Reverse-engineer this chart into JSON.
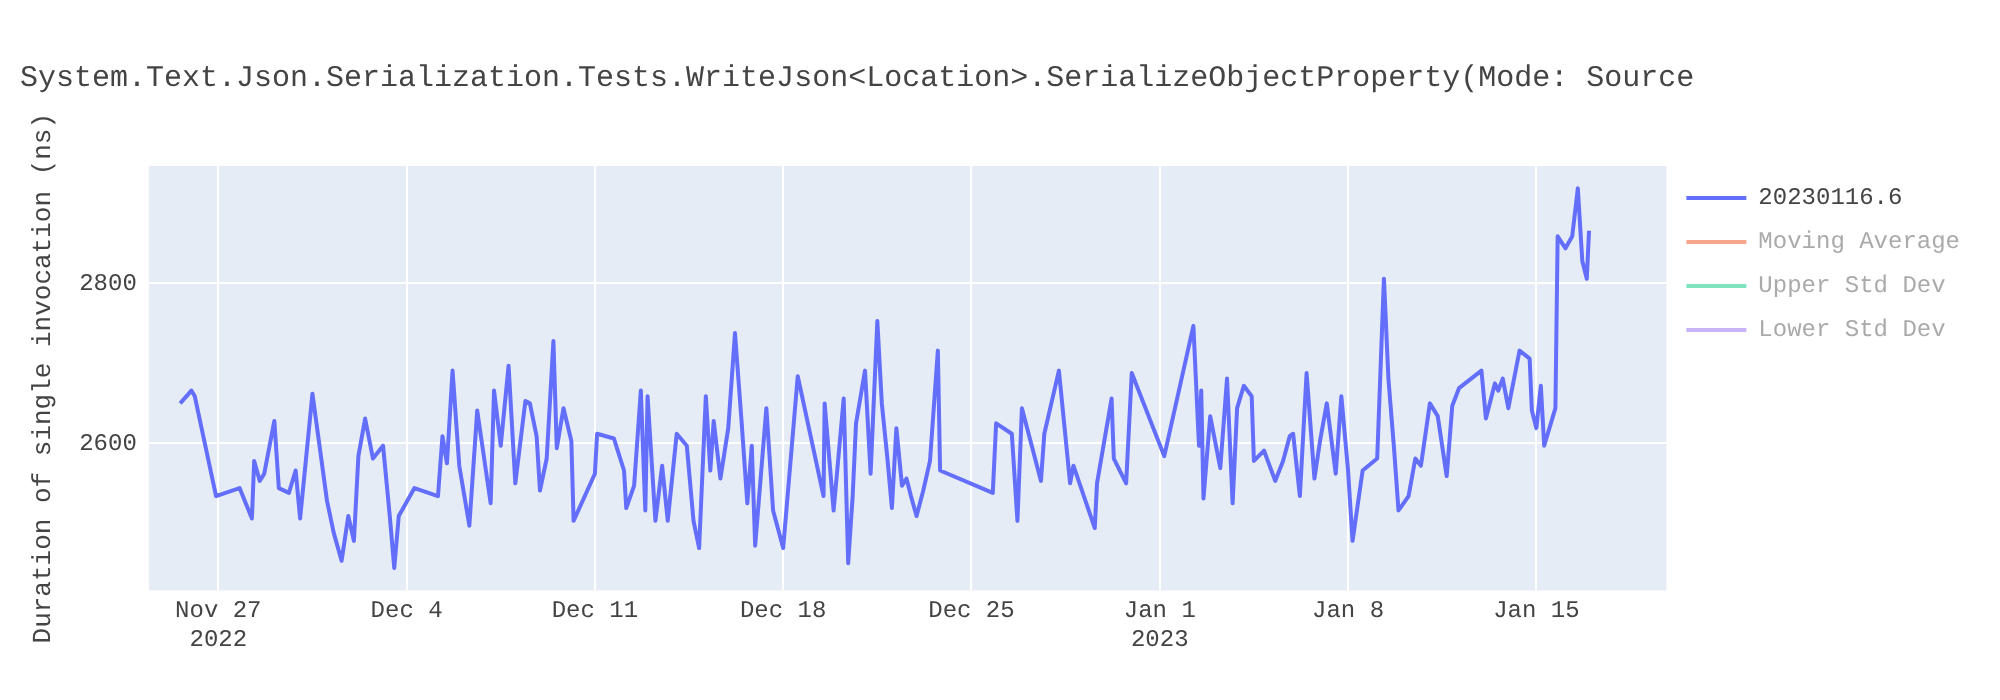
{
  "chart_data": {
    "type": "line",
    "title": "System.Text.Json.Serialization.Tests.WriteJson<Location>.SerializeObjectProperty(Mode: Source",
    "ylabel": "Duration of single invocation (ns)",
    "xlim": [
      "2022-11-24T10:00",
      "2023-01-19T20:00"
    ],
    "xticks": [
      {
        "value": "2022-11-27",
        "label": "Nov 27\n2022"
      },
      {
        "value": "2022-12-04",
        "label": "Dec 4"
      },
      {
        "value": "2022-12-11",
        "label": "Dec 11"
      },
      {
        "value": "2022-12-18",
        "label": "Dec 18"
      },
      {
        "value": "2022-12-25",
        "label": "Dec 25"
      },
      {
        "value": "2023-01-01",
        "label": "Jan 1\n2023"
      },
      {
        "value": "2023-01-08",
        "label": "Jan 8"
      },
      {
        "value": "2023-01-15",
        "label": "Jan 15"
      }
    ],
    "ylim": [
      2416,
      2947
    ],
    "yticks": [
      2600,
      2800
    ],
    "grid": true,
    "legend": "top right",
    "line_style": "solid",
    "x": [
      "2022-11-25T14:00",
      "2022-11-26T00:00",
      "2022-11-26T03:00",
      "2022-11-26T22:00",
      "2022-11-27T19:00",
      "2022-11-28T06:00",
      "2022-11-28T08:00",
      "2022-11-28T13:00",
      "2022-11-28T17:00",
      "2022-11-29T02:00",
      "2022-11-29T06:00",
      "2022-11-29T15:00",
      "2022-11-29T21:00",
      "2022-11-30T01:00",
      "2022-11-30T12:00",
      "2022-12-01T01:00",
      "2022-12-01T07:00",
      "2022-12-01T14:00",
      "2022-12-01T20:00",
      "2022-12-02T01:00",
      "2022-12-02T05:00",
      "2022-12-02T11:00",
      "2022-12-02T18:00",
      "2022-12-03T03:00",
      "2022-12-03T09:00",
      "2022-12-03T13:00",
      "2022-12-03T17:00",
      "2022-12-04T07:00",
      "2022-12-05T04:00",
      "2022-12-05T08:00",
      "2022-12-05T12:00",
      "2022-12-05T17:00",
      "2022-12-05T23:00",
      "2022-12-06T08:00",
      "2022-12-06T15:00",
      "2022-12-07T03:00",
      "2022-12-07T06:00",
      "2022-12-07T12:00",
      "2022-12-07T19:00",
      "2022-12-08T01:00",
      "2022-12-08T10:00",
      "2022-12-08T14:00",
      "2022-12-08T20:00",
      "2022-12-08T23:00",
      "2022-12-09T05:00",
      "2022-12-09T11:00",
      "2022-12-09T14:00",
      "2022-12-09T20:00",
      "2022-12-10T03:00",
      "2022-12-10T05:00",
      "2022-12-11T00:00",
      "2022-12-11T02:00",
      "2022-12-11T17:00",
      "2022-12-12T02:00",
      "2022-12-12T04:00",
      "2022-12-12T11:00",
      "2022-12-12T17:00",
      "2022-12-12T21:00",
      "2022-12-12T23:00",
      "2022-12-13T06:00",
      "2022-12-13T12:00",
      "2022-12-13T17:00",
      "2022-12-14T01:00",
      "2022-12-14T10:00",
      "2022-12-14T16:00",
      "2022-12-14T21:00",
      "2022-12-15T03:00",
      "2022-12-15T07:00",
      "2022-12-15T10:00",
      "2022-12-15T16:00",
      "2022-12-15T23:00",
      "2022-12-16T05:00",
      "2022-12-16T11:00",
      "2022-12-16T16:00",
      "2022-12-16T20:00",
      "2022-12-16T23:00",
      "2022-12-17T09:00",
      "2022-12-17T15:00",
      "2022-12-18T00:00",
      "2022-12-18T13:00",
      "2022-12-19T12:00",
      "2022-12-19T13:00",
      "2022-12-19T21:00",
      "2022-12-20T06:00",
      "2022-12-20T10:00",
      "2022-12-20T14:00",
      "2022-12-20T17:00",
      "2022-12-21T01:00",
      "2022-12-21T06:00",
      "2022-12-21T12:00",
      "2022-12-21T16:00",
      "2022-12-21T21:00",
      "2022-12-22T01:00",
      "2022-12-22T05:00",
      "2022-12-22T10:00",
      "2022-12-22T14:00",
      "2022-12-22T18:00",
      "2022-12-22T23:00",
      "2022-12-23T05:00",
      "2022-12-23T11:00",
      "2022-12-23T18:00",
      "2022-12-23T20:00",
      "2022-12-25T19:00",
      "2022-12-25T22:00",
      "2022-12-26T12:00",
      "2022-12-26T17:00",
      "2022-12-26T21:00",
      "2022-12-27T14:00",
      "2022-12-27T17:00",
      "2022-12-28T06:00",
      "2022-12-28T16:00",
      "2022-12-28T19:00",
      "2022-12-29T14:00",
      "2022-12-29T16:00",
      "2022-12-30T05:00",
      "2022-12-30T07:00",
      "2022-12-30T18:00",
      "2022-12-30T23:00",
      "2023-01-01T04:00",
      "2023-01-02T06:00",
      "2023-01-02T11:00",
      "2023-01-02T13:00",
      "2023-01-02T15:00",
      "2023-01-02T21:00",
      "2023-01-03T06:00",
      "2023-01-03T12:00",
      "2023-01-03T17:00",
      "2023-01-03T21:00",
      "2023-01-04T03:00",
      "2023-01-04T10:00",
      "2023-01-04T12:00",
      "2023-01-04T21:00",
      "2023-01-05T07:00",
      "2023-01-05T14:00",
      "2023-01-05T20:00",
      "2023-01-05T23:00",
      "2023-01-06T05:00",
      "2023-01-06T11:00",
      "2023-01-06T18:00",
      "2023-01-06T23:00",
      "2023-01-07T05:00",
      "2023-01-07T13:00",
      "2023-01-07T18:00",
      "2023-01-08T00:00",
      "2023-01-08T04:00",
      "2023-01-08T13:00",
      "2023-01-09T02:00",
      "2023-01-09T08:00",
      "2023-01-09T12:00",
      "2023-01-09T17:00",
      "2023-01-09T21:00",
      "2023-01-10T06:00",
      "2023-01-10T12:00",
      "2023-01-10T17:00",
      "2023-01-11T01:00",
      "2023-01-11T08:00",
      "2023-01-11T16:00",
      "2023-01-11T21:00",
      "2023-01-12T03:00",
      "2023-01-12T23:00",
      "2023-01-13T03:00",
      "2023-01-13T11:00",
      "2023-01-13T14:00",
      "2023-01-13T18:00",
      "2023-01-13T23:00",
      "2023-01-14T09:00",
      "2023-01-14T18:00",
      "2023-01-14T20:00",
      "2023-01-15T00:00",
      "2023-01-15T04:00",
      "2023-01-15T07:00",
      "2023-01-15T17:00",
      "2023-01-15T19:00",
      "2023-01-16T02:00",
      "2023-01-16T08:00",
      "2023-01-16T13:00",
      "2023-01-16T17:00",
      "2023-01-16T21:00",
      "2023-01-16T23:00"
    ],
    "series": [
      {
        "name": "20230116.6",
        "color": "#636efa",
        "values": [
          2650,
          2666,
          2659,
          2534,
          2544,
          2506,
          2578,
          2553,
          2562,
          2628,
          2544,
          2538,
          2566,
          2506,
          2662,
          2528,
          2488,
          2453,
          2509,
          2478,
          2584,
          2631,
          2581,
          2597,
          2509,
          2444,
          2509,
          2544,
          2534,
          2609,
          2575,
          2691,
          2572,
          2497,
          2641,
          2525,
          2666,
          2597,
          2697,
          2550,
          2653,
          2650,
          2609,
          2541,
          2581,
          2728,
          2594,
          2644,
          2603,
          2503,
          2562,
          2612,
          2606,
          2566,
          2519,
          2547,
          2666,
          2516,
          2659,
          2503,
          2572,
          2503,
          2612,
          2597,
          2503,
          2469,
          2659,
          2566,
          2628,
          2556,
          2619,
          2738,
          2625,
          2525,
          2597,
          2472,
          2644,
          2516,
          2469,
          2684,
          2534,
          2650,
          2516,
          2656,
          2450,
          2534,
          2625,
          2691,
          2562,
          2753,
          2650,
          2581,
          2519,
          2619,
          2547,
          2556,
          2534,
          2509,
          2541,
          2578,
          2716,
          2566,
          2538,
          2625,
          2612,
          2503,
          2644,
          2553,
          2612,
          2691,
          2550,
          2572,
          2494,
          2550,
          2656,
          2581,
          2550,
          2688,
          2584,
          2747,
          2597,
          2666,
          2531,
          2634,
          2569,
          2681,
          2525,
          2644,
          2672,
          2659,
          2578,
          2591,
          2553,
          2578,
          2609,
          2612,
          2534,
          2688,
          2556,
          2603,
          2650,
          2562,
          2659,
          2566,
          2478,
          2566,
          2581,
          2806,
          2681,
          2594,
          2516,
          2534,
          2581,
          2572,
          2650,
          2634,
          2559,
          2647,
          2669,
          2691,
          2631,
          2675,
          2666,
          2681,
          2644,
          2716,
          2706,
          2641,
          2619,
          2672,
          2597,
          2644,
          2859,
          2844,
          2859,
          2919,
          2828,
          2806,
          2866
        ]
      },
      {
        "name": "Moving Average",
        "color": "#f4a58a",
        "values": [
          null,
          null,
          null,
          null,
          null,
          null,
          null,
          null,
          null,
          null,
          null,
          null,
          null,
          null,
          null,
          null,
          null,
          null,
          null,
          null,
          null,
          null,
          null,
          null,
          null,
          null,
          null,
          null,
          null,
          null,
          null,
          null,
          null,
          null,
          null,
          null,
          null,
          null,
          null,
          null,
          null,
          null,
          null,
          null,
          null,
          null,
          null,
          null,
          null,
          null,
          null,
          null,
          null,
          null,
          null,
          null,
          null,
          null,
          null,
          null,
          null,
          null,
          null,
          null,
          null,
          null,
          null,
          null,
          null,
          null,
          null,
          null,
          null,
          null,
          null,
          null,
          null,
          null,
          null,
          null,
          null,
          null,
          null,
          null,
          null,
          null,
          null,
          null,
          null,
          null,
          null,
          null,
          null,
          null,
          null,
          null,
          null,
          null,
          null,
          null,
          null,
          null,
          null,
          null,
          null,
          null,
          null,
          null,
          null,
          null,
          null,
          null,
          null,
          null,
          null,
          null,
          null,
          null,
          null,
          null,
          null,
          null,
          null,
          null,
          null,
          null,
          null,
          null,
          null,
          null,
          null,
          null,
          null,
          null,
          null,
          null,
          null,
          null,
          null,
          null,
          null,
          null,
          null,
          null,
          null,
          null,
          null,
          null,
          null,
          null,
          null,
          null,
          null,
          null,
          null,
          null,
          null,
          null,
          null,
          null,
          null,
          null,
          null,
          null,
          null,
          null,
          null,
          null,
          null,
          null,
          null,
          null,
          null,
          null,
          null,
          null,
          null,
          null,
          null
        ]
      },
      {
        "name": "Upper Std Dev",
        "color": "#7fe3bb",
        "values": [
          null,
          null,
          null,
          null,
          null,
          null,
          null,
          null,
          null,
          null,
          null,
          null,
          null,
          null,
          null,
          null,
          null,
          null,
          null,
          null,
          null,
          null,
          null,
          null,
          null,
          null,
          null,
          null,
          null,
          null,
          null,
          null,
          null,
          null,
          null,
          null,
          null,
          null,
          null,
          null,
          null,
          null,
          null,
          null,
          null,
          null,
          null,
          null,
          null,
          null,
          null,
          null,
          null,
          null,
          null,
          null,
          null,
          null,
          null,
          null,
          null,
          null,
          null,
          null,
          null,
          null,
          null,
          null,
          null,
          null,
          null,
          null,
          null,
          null,
          null,
          null,
          null,
          null,
          null,
          null,
          null,
          null,
          null,
          null,
          null,
          null,
          null,
          null,
          null,
          null,
          null,
          null,
          null,
          null,
          null,
          null,
          null,
          null,
          null,
          null,
          null,
          null,
          null,
          null,
          null,
          null,
          null,
          null,
          null,
          null,
          null,
          null,
          null,
          null,
          null,
          null,
          null,
          null,
          null,
          null,
          null,
          null,
          null,
          null,
          null,
          null,
          null,
          null,
          null,
          null,
          null,
          null,
          null,
          null,
          null,
          null,
          null,
          null,
          null,
          null,
          null,
          null,
          null,
          null,
          null,
          null,
          null,
          null,
          null,
          null,
          null,
          null,
          null,
          null,
          null,
          null,
          null,
          null,
          null,
          null,
          null,
          null,
          null,
          null,
          null,
          null,
          null,
          null,
          null,
          null,
          null,
          null,
          null,
          null,
          null,
          null,
          null,
          null,
          null
        ]
      },
      {
        "name": "Lower Std Dev",
        "color": "#c9b3f7",
        "values": [
          null,
          null,
          null,
          null,
          null,
          null,
          null,
          null,
          null,
          null,
          null,
          null,
          null,
          null,
          null,
          null,
          null,
          null,
          null,
          null,
          null,
          null,
          null,
          null,
          null,
          null,
          null,
          null,
          null,
          null,
          null,
          null,
          null,
          null,
          null,
          null,
          null,
          null,
          null,
          null,
          null,
          null,
          null,
          null,
          null,
          null,
          null,
          null,
          null,
          null,
          null,
          null,
          null,
          null,
          null,
          null,
          null,
          null,
          null,
          null,
          null,
          null,
          null,
          null,
          null,
          null,
          null,
          null,
          null,
          null,
          null,
          null,
          null,
          null,
          null,
          null,
          null,
          null,
          null,
          null,
          null,
          null,
          null,
          null,
          null,
          null,
          null,
          null,
          null,
          null,
          null,
          null,
          null,
          null,
          null,
          null,
          null,
          null,
          null,
          null,
          null,
          null,
          null,
          null,
          null,
          null,
          null,
          null,
          null,
          null,
          null,
          null,
          null,
          null,
          null,
          null,
          null,
          null,
          null,
          null,
          null,
          null,
          null,
          null,
          null,
          null,
          null,
          null,
          null,
          null,
          null,
          null,
          null,
          null,
          null,
          null,
          null,
          null,
          null,
          null,
          null,
          null,
          null,
          null,
          null,
          null,
          null,
          null,
          null,
          null,
          null,
          null,
          null,
          null,
          null,
          null,
          null,
          null,
          null,
          null,
          null,
          null,
          null,
          null,
          null,
          null,
          null,
          null,
          null,
          null,
          null,
          null,
          null,
          null,
          null,
          null,
          null,
          null,
          null
        ]
      }
    ]
  }
}
